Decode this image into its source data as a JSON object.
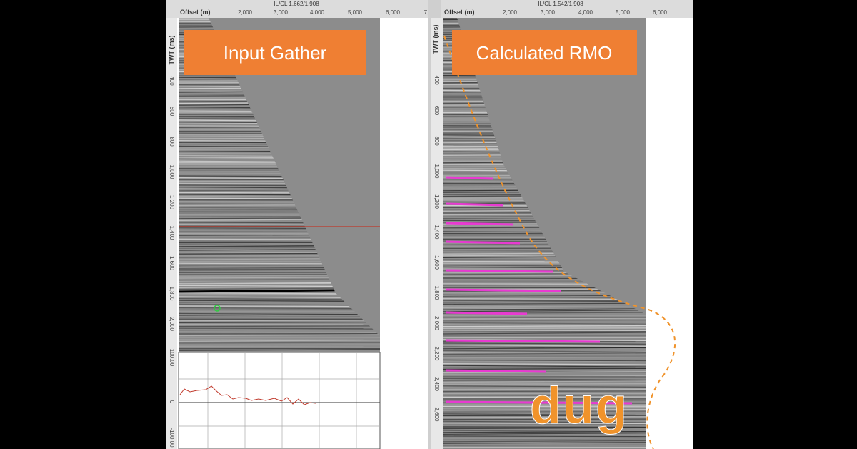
{
  "left_panel": {
    "header": "IL/CL 1,662/1,908",
    "x_axis_label": "Offset (m)",
    "x_ticks": [
      "2,000",
      "3,000",
      "4,000",
      "5,000",
      "6,000",
      "7,"
    ],
    "y_axis_label": "TWT (ms)",
    "y_ticks": [
      "400",
      "600",
      "800",
      "1,000",
      "1,200",
      "1,400",
      "1,600",
      "1,800",
      "2,000"
    ],
    "overlay_label": "Input Gather",
    "qc_ticks": [
      "100.00",
      "0",
      "-100.00"
    ]
  },
  "right_panel": {
    "header": "IL/CL 1,542/1,908",
    "x_axis_label": "Offset (m)",
    "x_ticks": [
      "2,000",
      "3,000",
      "4,000",
      "5,000",
      "6,000"
    ],
    "y_axis_label": "TWT (ms)",
    "y_ticks": [
      "400",
      "600",
      "800",
      "1,000",
      "1,200",
      "1,400",
      "1,600",
      "1,800",
      "2,000",
      "2,200",
      "2,400",
      "2,600"
    ],
    "overlay_label": "Calculated RMO"
  },
  "logo": "dug"
}
